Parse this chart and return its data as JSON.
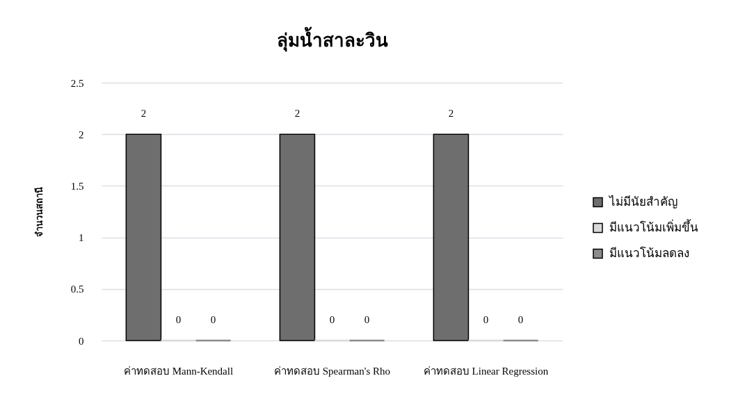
{
  "chart_data": {
    "type": "bar",
    "title": "ลุ่มน้ำสาละวิน",
    "ylabel": "จำนวนสถานี",
    "categories": [
      "ค่าทดสอบ Mann-Kendall",
      "ค่าทดสอบ Spearman's Rho",
      "ค่าทดสอบ Linear Regression"
    ],
    "series": [
      {
        "name": "ไม่มีนัยสำคัญ",
        "color": "#6e6e6e",
        "values": [
          2,
          2,
          2
        ]
      },
      {
        "name": "มีแนวโน้มเพิ่มขึ้น",
        "color": "#d9d9d9",
        "values": [
          0,
          0,
          0
        ]
      },
      {
        "name": "มีแนวโน้มลดลง",
        "color": "#8c8c8c",
        "values": [
          0,
          0,
          0
        ]
      }
    ],
    "ylim": [
      0,
      2.5
    ],
    "yticks": [
      0,
      0.5,
      1,
      1.5,
      2,
      2.5
    ],
    "grid": "y",
    "legend": "right",
    "data_labels": true
  }
}
